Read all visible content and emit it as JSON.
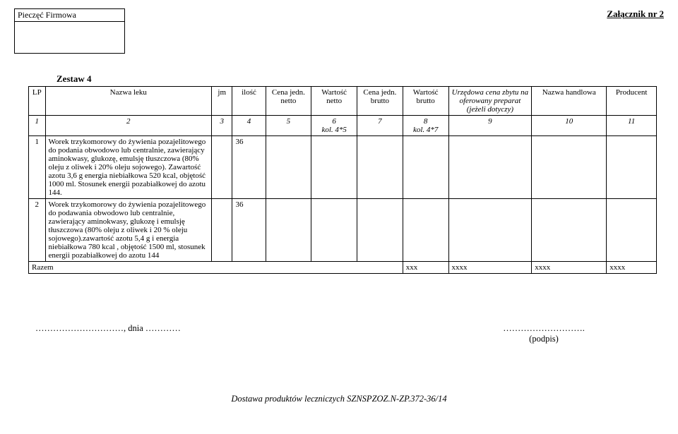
{
  "header": {
    "stamp_label": "Pieczęć Firmowa",
    "attachment": "Załącznik nr 2",
    "set_title": "Zestaw 4"
  },
  "table": {
    "columns": {
      "lp": "LP",
      "nazwa": "Nazwa leku",
      "jm": "jm",
      "ilosc": "ilość",
      "cena_netto": "Cena jedn. netto",
      "wartosc_netto": "Wartość netto",
      "cena_brutto": "Cena jedn. brutto",
      "wartosc_brutto": "Wartość brutto",
      "urzedowa": "Urzędowa cena zbytu na oferowany preparat (jeżeli dotyczy)",
      "handlowa": "Nazwa handlowa",
      "producent": "Producent"
    },
    "num_row": {
      "c1": "1",
      "c2": "2",
      "c3": "3",
      "c4": "4",
      "c5": "5",
      "c6": "6\nkol. 4*5",
      "c7": "7",
      "c8": "8\nkol. 4*7",
      "c9": "9",
      "c10": "10",
      "c11": "11"
    },
    "rows": [
      {
        "lp": "1",
        "nazwa": "Worek trzykomorowy do żywienia pozajelitowego do podania obwodowo lub centralnie, zawierający aminokwasy, glukozę, emulsję tłuszczowa (80% oleju z oliwek i 20% oleju sojowego). Zawartość azotu 3,6 g energia niebiałkowa 520 kcal, objętość 1000 ml. Stosunek energii pozabiałkowej do azotu 144.",
        "jm": "",
        "ilosc": "36",
        "cena_netto": "",
        "wartosc_netto": "",
        "cena_brutto": "",
        "wartosc_brutto": "",
        "urzedowa": "",
        "handlowa": "",
        "producent": ""
      },
      {
        "lp": "2",
        "nazwa": "Worek trzykomorowy do żywienia pozajelitowego do podawania obwodowo lub centralnie, zawierający aminokwasy, glukozę i emulsję tłuszczowa (80% oleju  z oliwek i 20 % oleju sojowego).zawartość azotu 5,4 g i energia niebiałkowa 780 kcal , objętość 1500 ml, stosunek energii pozabiałkowej do azotu 144",
        "jm": "",
        "ilosc": "36",
        "cena_netto": "",
        "wartosc_netto": "",
        "cena_brutto": "",
        "wartosc_brutto": "",
        "urzedowa": "",
        "handlowa": "",
        "producent": ""
      }
    ],
    "summary": {
      "label": "Razem",
      "wartosc_brutto": "xxx",
      "urzedowa": "xxxx",
      "handlowa": "xxxx",
      "producent": "xxxx"
    }
  },
  "signature": {
    "date_line": "…………………………, dnia …………",
    "dots": "……………………….",
    "podpis": "(podpis)"
  },
  "footer": {
    "text": "Dostawa produktów leczniczych SZNSPZOZ.N-ZP.372-36/14"
  }
}
